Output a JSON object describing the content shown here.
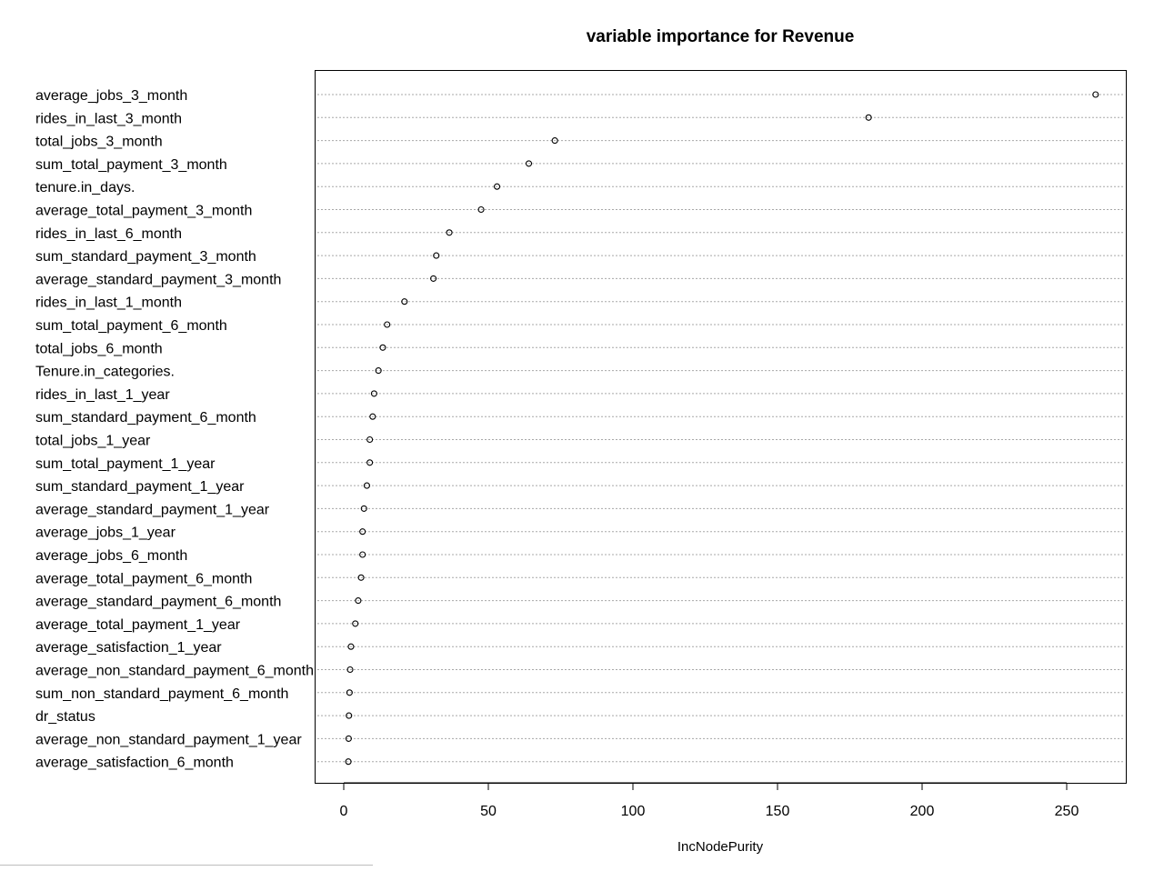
{
  "chart_data": {
    "type": "scatter",
    "title": "variable importance for Revenue",
    "xlabel": "IncNodePurity",
    "ylabel": "",
    "xlim": [
      -10,
      270
    ],
    "xticks": [
      0,
      50,
      100,
      150,
      200,
      250
    ],
    "grid": "dotted horizontal lines",
    "legend": "none",
    "marker_color": "#000000",
    "categories": [
      "average_jobs_3_month",
      "rides_in_last_3_month",
      "total_jobs_3_month",
      "sum_total_payment_3_month",
      "tenure.in_days.",
      "average_total_payment_3_month",
      "rides_in_last_6_month",
      "sum_standard_payment_3_month",
      "average_standard_payment_3_month",
      "rides_in_last_1_month",
      "sum_total_payment_6_month",
      "total_jobs_6_month",
      "Tenure.in_categories.",
      "rides_in_last_1_year",
      "sum_standard_payment_6_month",
      "total_jobs_1_year",
      "sum_total_payment_1_year",
      "sum_standard_payment_1_year",
      "average_standard_payment_1_year",
      "average_jobs_1_year",
      "average_jobs_6_month",
      "average_total_payment_6_month",
      "average_standard_payment_6_month",
      "average_total_payment_1_year",
      "average_satisfaction_1_year",
      "average_non_standard_payment_6_month",
      "sum_non_standard_payment_6_month",
      "dr_status",
      "average_non_standard_payment_1_year",
      "average_satisfaction_6_month"
    ],
    "values": [
      260,
      181.5,
      73,
      64,
      53,
      47.5,
      36.5,
      32,
      31,
      21,
      15,
      13.5,
      12,
      10.5,
      10,
      9,
      9,
      8,
      7,
      6.5,
      6.5,
      6,
      5,
      4,
      2.5,
      2.2,
      2,
      1.8,
      1.7,
      1.6
    ]
  }
}
